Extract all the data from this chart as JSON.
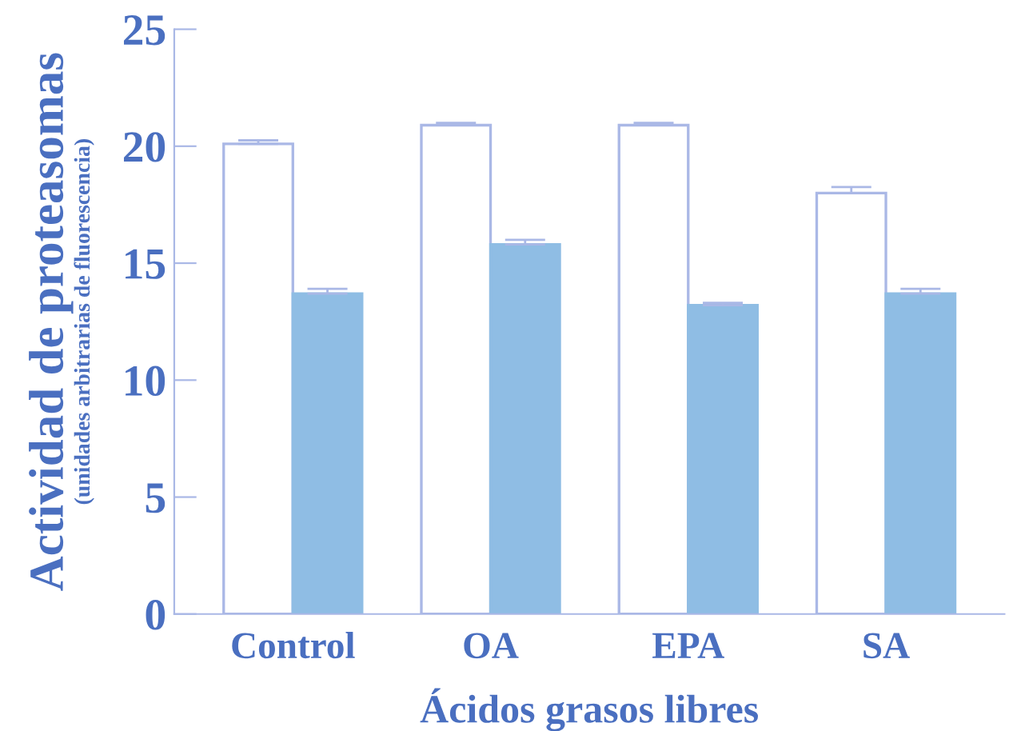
{
  "chart_data": {
    "type": "bar",
    "xlabel": "Ácidos grasos libres",
    "ylabel": "Actividad de proteasomas",
    "annotations": [
      "(unidades arbitrarias de fluorescencia)"
    ],
    "categories": [
      "Control",
      "OA",
      "EPA",
      "SA"
    ],
    "series": [
      {
        "color": "#ffffff",
        "values": [
          20.1,
          20.9,
          20.9,
          18.0
        ],
        "errors": [
          [
            20.1,
            20.25
          ],
          [
            20.9,
            21.0
          ],
          [
            20.9,
            21.0
          ],
          [
            18.0,
            18.25
          ]
        ]
      },
      {
        "color": "#8fbde4",
        "values": [
          13.7,
          15.8,
          13.2,
          13.7
        ],
        "errors": [
          [
            13.7,
            13.9
          ],
          [
            15.8,
            16.0
          ],
          [
            13.2,
            13.3
          ],
          [
            13.7,
            13.9
          ]
        ]
      }
    ],
    "ylim": [
      0,
      25
    ],
    "yticks": [
      0,
      5,
      10,
      15,
      20,
      25
    ],
    "grid": false,
    "legend": false
  }
}
